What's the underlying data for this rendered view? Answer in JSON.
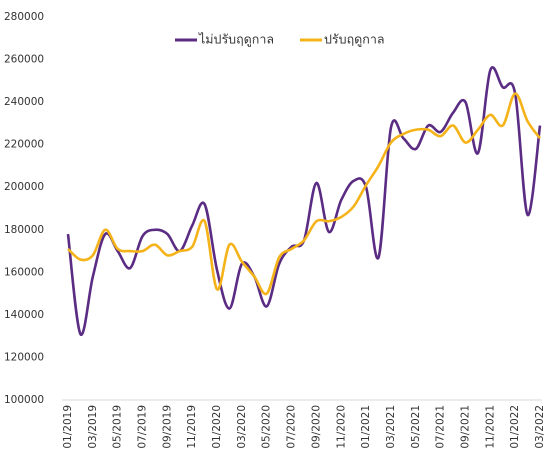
{
  "chart_data": {
    "type": "line",
    "categories": [
      "01/2019",
      null,
      "03/2019",
      null,
      "05/2019",
      null,
      "07/2019",
      null,
      "09/2019",
      null,
      "11/2019",
      null,
      "01/2020",
      null,
      "03/2020",
      null,
      "05/2020",
      null,
      "07/2020",
      null,
      "09/2020",
      null,
      "11/2020",
      null,
      "01/2021",
      null,
      "03/2021",
      null,
      "05/2021",
      null,
      "07/2021",
      null,
      "09/2021",
      null,
      "11/2021",
      null,
      "01/2022",
      null,
      "03/2022"
    ],
    "series": [
      {
        "name": "ไม่ปรับฤดูกาล",
        "color": "#5b2c83",
        "values": [
          178000,
          131000,
          158000,
          178000,
          170000,
          162000,
          177000,
          180000,
          178000,
          170000,
          182000,
          192000,
          161000,
          143000,
          164000,
          158000,
          144000,
          164000,
          172000,
          175000,
          202000,
          179000,
          194000,
          203000,
          200000,
          167000,
          228000,
          223000,
          218000,
          229000,
          226000,
          235000,
          240000,
          216000,
          255000,
          247000,
          244000,
          187000,
          229000
        ]
      },
      {
        "name": "ปรับฤดูกาล",
        "color": "#f5b31a",
        "values": [
          171000,
          166000,
          168000,
          180000,
          171000,
          170000,
          170000,
          173000,
          168000,
          170000,
          172000,
          184000,
          152000,
          173000,
          165000,
          158000,
          150000,
          167000,
          171000,
          175000,
          184000,
          184000,
          186000,
          191000,
          201000,
          210000,
          221000,
          225000,
          227000,
          227000,
          224000,
          229000,
          221000,
          227000,
          234000,
          229000,
          244000,
          231000,
          223000
        ]
      }
    ],
    "ylim": [
      100000,
      280000
    ],
    "yticks": [
      100000,
      120000,
      140000,
      160000,
      180000,
      200000,
      220000,
      240000,
      260000,
      280000
    ],
    "grid": false,
    "legend": "top"
  }
}
